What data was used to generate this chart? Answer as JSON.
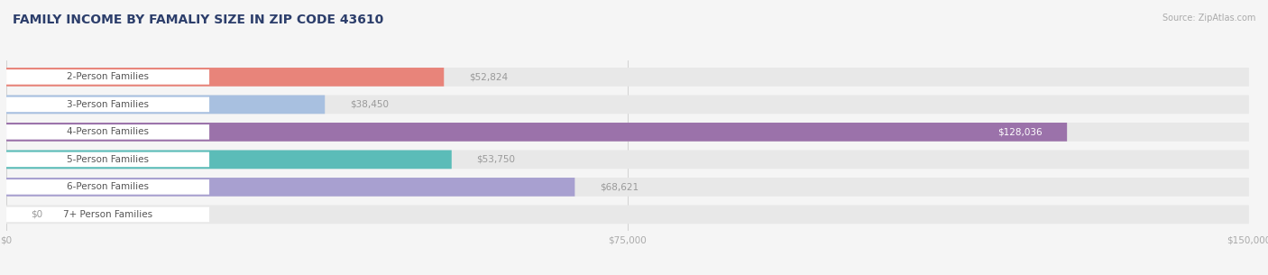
{
  "title": "FAMILY INCOME BY FAMALIY SIZE IN ZIP CODE 43610",
  "source": "Source: ZipAtlas.com",
  "categories": [
    "2-Person Families",
    "3-Person Families",
    "4-Person Families",
    "5-Person Families",
    "6-Person Families",
    "7+ Person Families"
  ],
  "values": [
    52824,
    38450,
    128036,
    53750,
    68621,
    0
  ],
  "bar_colors": [
    "#e8847a",
    "#a8c0e0",
    "#9b72aa",
    "#5bbcb8",
    "#a8a0d0",
    "#f0a0b0"
  ],
  "bar_bg_color": "#e8e8e8",
  "value_label_color_inside": "#ffffff",
  "value_label_color_outside": "#999999",
  "title_color": "#2c3e6b",
  "source_color": "#aaaaaa",
  "tick_label_color": "#aaaaaa",
  "cat_label_color": "#555555",
  "xlim": [
    0,
    150000
  ],
  "xticks": [
    0,
    75000,
    150000
  ],
  "xtick_labels": [
    "$0",
    "$75,000",
    "$150,000"
  ],
  "background_color": "#f5f5f5",
  "title_fontsize": 10,
  "bar_label_fontsize": 7.5,
  "value_fontsize": 7.5,
  "source_fontsize": 7,
  "tick_fontsize": 7.5,
  "bar_height": 0.68,
  "figsize": [
    14.06,
    3.05
  ],
  "dpi": 100
}
